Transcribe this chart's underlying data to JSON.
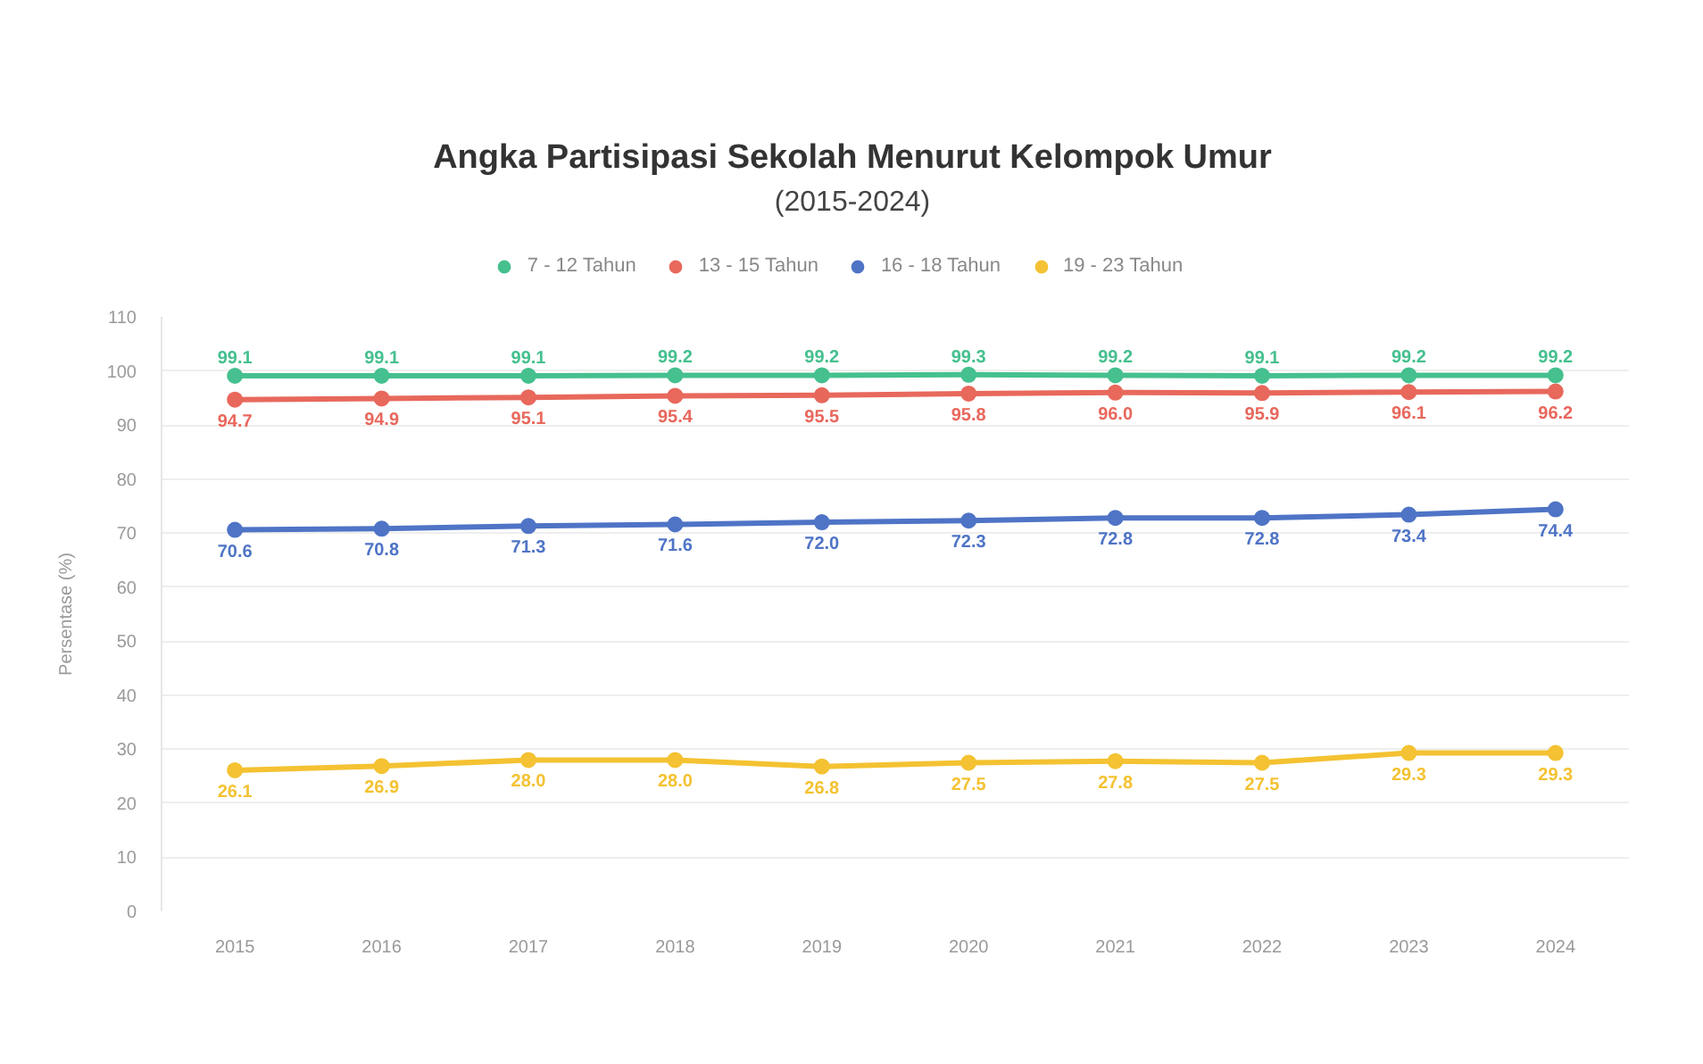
{
  "chart_data": {
    "type": "line",
    "title": "Angka Partisipasi Sekolah Menurut Kelompok Umur",
    "subtitle": "(2015-2024)",
    "ylabel": "Persentase (%)",
    "categories": [
      "2015",
      "2016",
      "2017",
      "2018",
      "2019",
      "2020",
      "2021",
      "2022",
      "2023",
      "2024"
    ],
    "series": [
      {
        "name": "7 - 12 Tahun",
        "color": "#45c08e",
        "values": [
          99.1,
          99.1,
          99.1,
          99.2,
          99.2,
          99.3,
          99.2,
          99.1,
          99.2,
          99.2
        ],
        "value_labels": [
          "99.1",
          "99.1",
          "99.1",
          "99.2",
          "99.2",
          "99.3",
          "99.2",
          "99.1",
          "99.2",
          "99.2"
        ]
      },
      {
        "name": "13 - 15 Tahun",
        "color": "#e8685c",
        "values": [
          94.7,
          94.9,
          95.1,
          95.4,
          95.5,
          95.8,
          96.0,
          95.9,
          96.1,
          96.2
        ],
        "value_labels": [
          "94.7",
          "94.9",
          "95.1",
          "95.4",
          "95.5",
          "95.8",
          "96.0",
          "95.9",
          "96.1",
          "96.2"
        ]
      },
      {
        "name": "16 - 18 Tahun",
        "color": "#4f74c6",
        "values": [
          70.6,
          70.8,
          71.3,
          71.6,
          72.0,
          72.3,
          72.8,
          72.8,
          73.4,
          74.4
        ],
        "value_labels": [
          "70.6",
          "70.8",
          "71.3",
          "71.6",
          "72.0",
          "72.3",
          "72.8",
          "72.8",
          "73.4",
          "74.4"
        ]
      },
      {
        "name": "19 - 23 Tahun",
        "color": "#f4c232",
        "values": [
          26.1,
          26.9,
          28.0,
          28.0,
          26.8,
          27.5,
          27.8,
          27.5,
          29.3,
          29.3
        ],
        "value_labels": [
          "26.1",
          "26.9",
          "28.0",
          "28.0",
          "26.8",
          "27.5",
          "27.8",
          "27.5",
          "29.3",
          "29.3"
        ]
      }
    ],
    "ylim": [
      0,
      110
    ],
    "yticks": [
      0,
      10,
      20,
      30,
      40,
      50,
      60,
      70,
      80,
      90,
      100,
      110
    ],
    "grid": "y",
    "legend": "top",
    "marker": "circle",
    "line_style": "solid"
  }
}
